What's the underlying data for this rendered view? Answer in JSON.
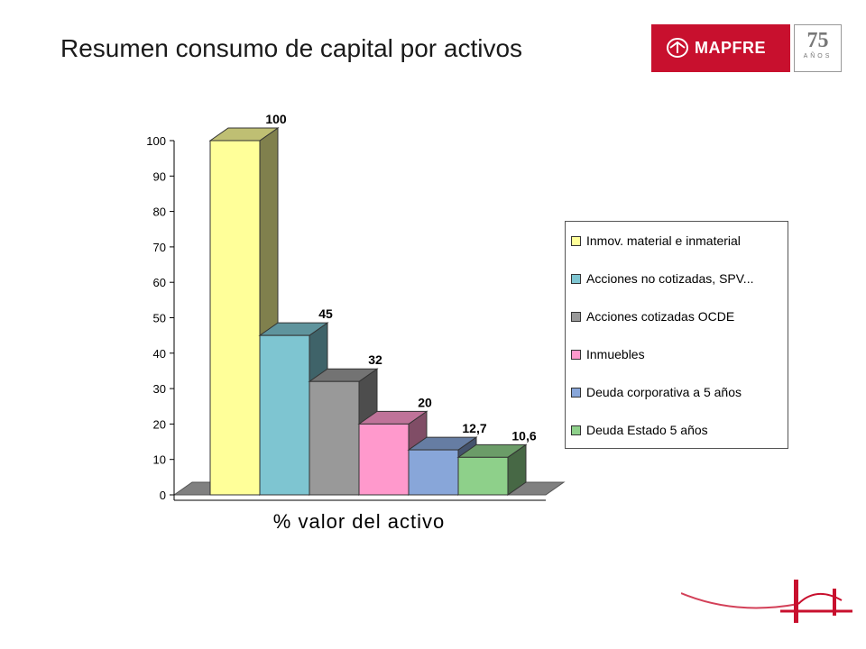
{
  "page": {
    "title": "Resumen consumo de capital por activos",
    "brand": "MAPFRE",
    "anniversary_number": "75",
    "anniversary_text": "AÑOS"
  },
  "chart_data": {
    "type": "bar",
    "style": "3d",
    "xlabel": "% valor del activo",
    "ylabel": "",
    "ylim": [
      0,
      100
    ],
    "yticks": [
      0,
      10,
      20,
      30,
      40,
      50,
      60,
      70,
      80,
      90,
      100
    ],
    "legend_position": "right",
    "grid": false,
    "series": [
      {
        "name": "Inmov. material e inmaterial",
        "value": 100,
        "label": "100",
        "color": "#ffff99"
      },
      {
        "name": "Acciones no cotizadas, SPV...",
        "value": 45,
        "label": "45",
        "color": "#7ec5d1"
      },
      {
        "name": "Acciones cotizadas OCDE",
        "value": 32,
        "label": "32",
        "color": "#999999"
      },
      {
        "name": "Inmuebles",
        "value": 20,
        "label": "20",
        "color": "#ff99cc"
      },
      {
        "name": "Deuda corporativa a 5 años",
        "value": 12.7,
        "label": "12,7",
        "color": "#88a6d9"
      },
      {
        "name": "Deuda Estado 5 años",
        "value": 10.6,
        "label": "10,6",
        "color": "#8ed08a"
      }
    ]
  }
}
